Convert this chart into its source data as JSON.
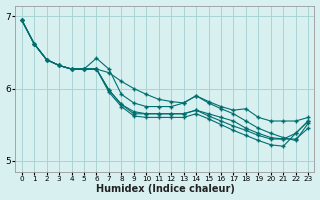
{
  "xlabel": "Humidex (Indice chaleur)",
  "xlim": [
    -0.5,
    23.5
  ],
  "ylim": [
    4.85,
    7.15
  ],
  "yticks": [
    5,
    6,
    7
  ],
  "xticks": [
    0,
    1,
    2,
    3,
    4,
    5,
    6,
    7,
    8,
    9,
    10,
    11,
    12,
    13,
    14,
    15,
    16,
    17,
    18,
    19,
    20,
    21,
    22,
    23
  ],
  "bg_color": "#d8f0f0",
  "grid_color": "#aad4d4",
  "line_color": "#006e6e",
  "series": [
    [
      6.95,
      6.62,
      6.4,
      6.32,
      6.27,
      6.27,
      6.27,
      6.22,
      6.1,
      6.0,
      5.92,
      5.85,
      5.82,
      5.8,
      5.9,
      5.82,
      5.75,
      5.7,
      5.72,
      5.6,
      5.55,
      5.55,
      5.55,
      5.6
    ],
    [
      6.95,
      6.62,
      6.4,
      6.32,
      6.27,
      6.27,
      6.42,
      6.27,
      5.92,
      5.8,
      5.75,
      5.75,
      5.75,
      5.8,
      5.9,
      5.8,
      5.72,
      5.65,
      5.55,
      5.45,
      5.38,
      5.32,
      5.28,
      5.52
    ],
    [
      6.95,
      6.62,
      6.4,
      6.32,
      6.27,
      6.27,
      6.27,
      5.98,
      5.78,
      5.68,
      5.65,
      5.65,
      5.65,
      5.65,
      5.7,
      5.65,
      5.6,
      5.55,
      5.45,
      5.38,
      5.32,
      5.3,
      5.3,
      5.45
    ],
    [
      6.95,
      6.62,
      6.4,
      6.32,
      6.27,
      6.27,
      6.27,
      5.98,
      5.78,
      5.65,
      5.65,
      5.65,
      5.65,
      5.65,
      5.7,
      5.62,
      5.55,
      5.48,
      5.42,
      5.35,
      5.3,
      5.3,
      5.38,
      5.55
    ],
    [
      6.95,
      6.62,
      6.4,
      6.32,
      6.27,
      6.27,
      6.27,
      5.95,
      5.75,
      5.62,
      5.6,
      5.6,
      5.6,
      5.6,
      5.65,
      5.58,
      5.5,
      5.42,
      5.35,
      5.28,
      5.22,
      5.2,
      5.38,
      5.55
    ]
  ]
}
